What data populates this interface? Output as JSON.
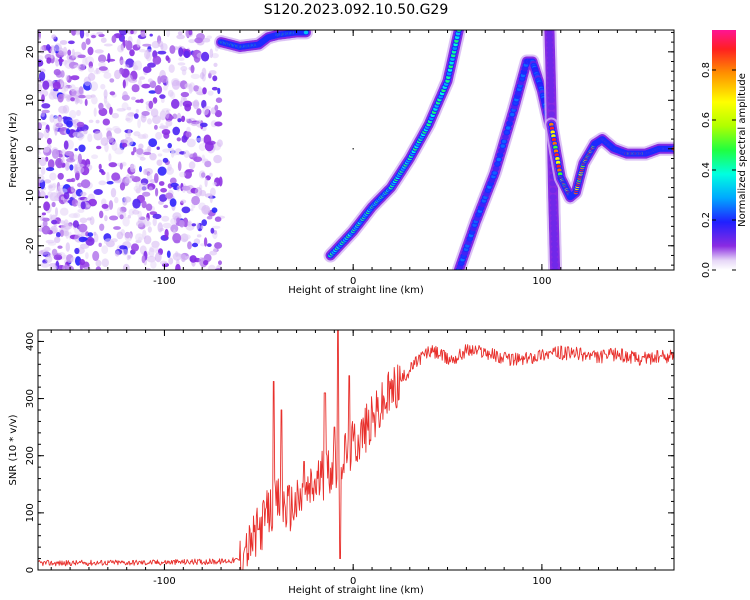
{
  "title": "S120.2023.092.10.50.G29",
  "chart_data": [
    {
      "type": "heatmap",
      "xlabel": "Height of straight line (km)",
      "ylabel": "Frequency (Hz)",
      "xlim": [
        -167,
        170
      ],
      "ylim": [
        -25,
        24.5
      ],
      "x_ticks": [
        -100,
        0,
        100
      ],
      "x_tick_labels": [
        "-100",
        "0",
        "100"
      ],
      "y_ticks": [
        -20,
        -10,
        0,
        10,
        20
      ],
      "y_tick_labels": [
        "-20",
        "-10",
        "0",
        "10",
        "20"
      ],
      "colorbar": {
        "label": "Normalized spectral amplitude",
        "range": [
          0,
          0.96
        ],
        "ticks": [
          0,
          0.2,
          0.4,
          0.6,
          0.8
        ],
        "tick_labels": [
          "0.0",
          "0.2",
          "0.4",
          "0.6",
          "0.8"
        ],
        "colormap": "rainbow (white → purple → blue → cyan → green → yellow → orange → red → magenta)"
      },
      "noise_region": {
        "x_range": [
          -167,
          -70
        ],
        "amplitude": "0.05–0.2"
      },
      "traces": [
        {
          "name": "signal upper segment",
          "points": [
            [
              -70,
              22
            ],
            [
              -60,
              21
            ],
            [
              -50,
              21.5
            ],
            [
              -45,
              23
            ],
            [
              -40,
              23.5
            ],
            [
              -30,
              24
            ],
            [
              -25,
              24
            ]
          ],
          "peak_amplitude": 0.5
        },
        {
          "name": "main rising signal",
          "points": [
            [
              -12,
              -22
            ],
            [
              0,
              -17
            ],
            [
              10,
              -12
            ],
            [
              20,
              -8
            ],
            [
              30,
              -2
            ],
            [
              40,
              5
            ],
            [
              50,
              14
            ],
            [
              56,
              24.5
            ]
          ],
          "peak_amplitude": 0.45
        },
        {
          "name": "second rising branch",
          "points": [
            [
              56,
              -25
            ],
            [
              65,
              -15
            ],
            [
              75,
              -5
            ],
            [
              85,
              8
            ],
            [
              92,
              18
            ],
            [
              95,
              18
            ],
            [
              100,
              12
            ],
            [
              104,
              5
            ]
          ],
          "peak_amplitude": 0.25
        },
        {
          "name": "descending branch",
          "points": [
            [
              104,
              24.5
            ],
            [
              105,
              10
            ],
            [
              106,
              -10
            ],
            [
              107,
              -25
            ]
          ],
          "peak_amplitude": 0.08
        },
        {
          "name": "damped oscillation",
          "points": [
            [
              105,
              5
            ],
            [
              110,
              -6
            ],
            [
              115,
              -10
            ],
            [
              118,
              -9
            ],
            [
              122,
              -3
            ],
            [
              128,
              1
            ],
            [
              132,
              2
            ],
            [
              138,
              0
            ],
            [
              145,
              -1
            ],
            [
              155,
              -1
            ],
            [
              162,
              0
            ],
            [
              170,
              0
            ]
          ],
          "peak_amplitude": 0.9
        }
      ]
    },
    {
      "type": "line",
      "xlabel": "Height of straight line (km)",
      "ylabel": "SNR (10 * v/v)",
      "xlim": [
        -167,
        170
      ],
      "ylim": [
        0,
        420
      ],
      "x_ticks": [
        -100,
        0,
        100
      ],
      "x_tick_labels": [
        "-100",
        "0",
        "100"
      ],
      "y_ticks": [
        0,
        100,
        200,
        300,
        400
      ],
      "y_tick_labels": [
        "0",
        "100",
        "200",
        "300",
        "400"
      ],
      "color": "#e8302c",
      "series": [
        {
          "values_x": [
            -167,
            -150,
            -130,
            -110,
            -90,
            -70,
            -60,
            -55,
            -50,
            -45,
            -40,
            -35,
            -30,
            -25,
            -20,
            -15,
            -10,
            -5,
            0,
            5,
            10,
            15,
            20,
            25,
            30,
            35,
            40,
            45,
            50,
            55,
            60,
            70,
            80,
            90,
            100,
            110,
            120,
            130,
            140,
            150,
            160,
            170
          ],
          "values_y": [
            12,
            12,
            13,
            13,
            14,
            15,
            18,
            40,
            70,
            100,
            120,
            110,
            115,
            130,
            150,
            170,
            185,
            200,
            220,
            240,
            260,
            285,
            310,
            330,
            350,
            370,
            382,
            380,
            368,
            372,
            385,
            382,
            370,
            368,
            378,
            380,
            378,
            372,
            378,
            370,
            372,
            375
          ]
        }
      ],
      "spikes": [
        [
          -57,
          40
        ],
        [
          -42,
          330
        ],
        [
          -38,
          280
        ],
        [
          -26,
          190
        ],
        [
          -15,
          310
        ],
        [
          -10,
          250
        ],
        [
          -8,
          420
        ],
        [
          -7,
          20
        ],
        [
          -2,
          340
        ]
      ]
    }
  ]
}
